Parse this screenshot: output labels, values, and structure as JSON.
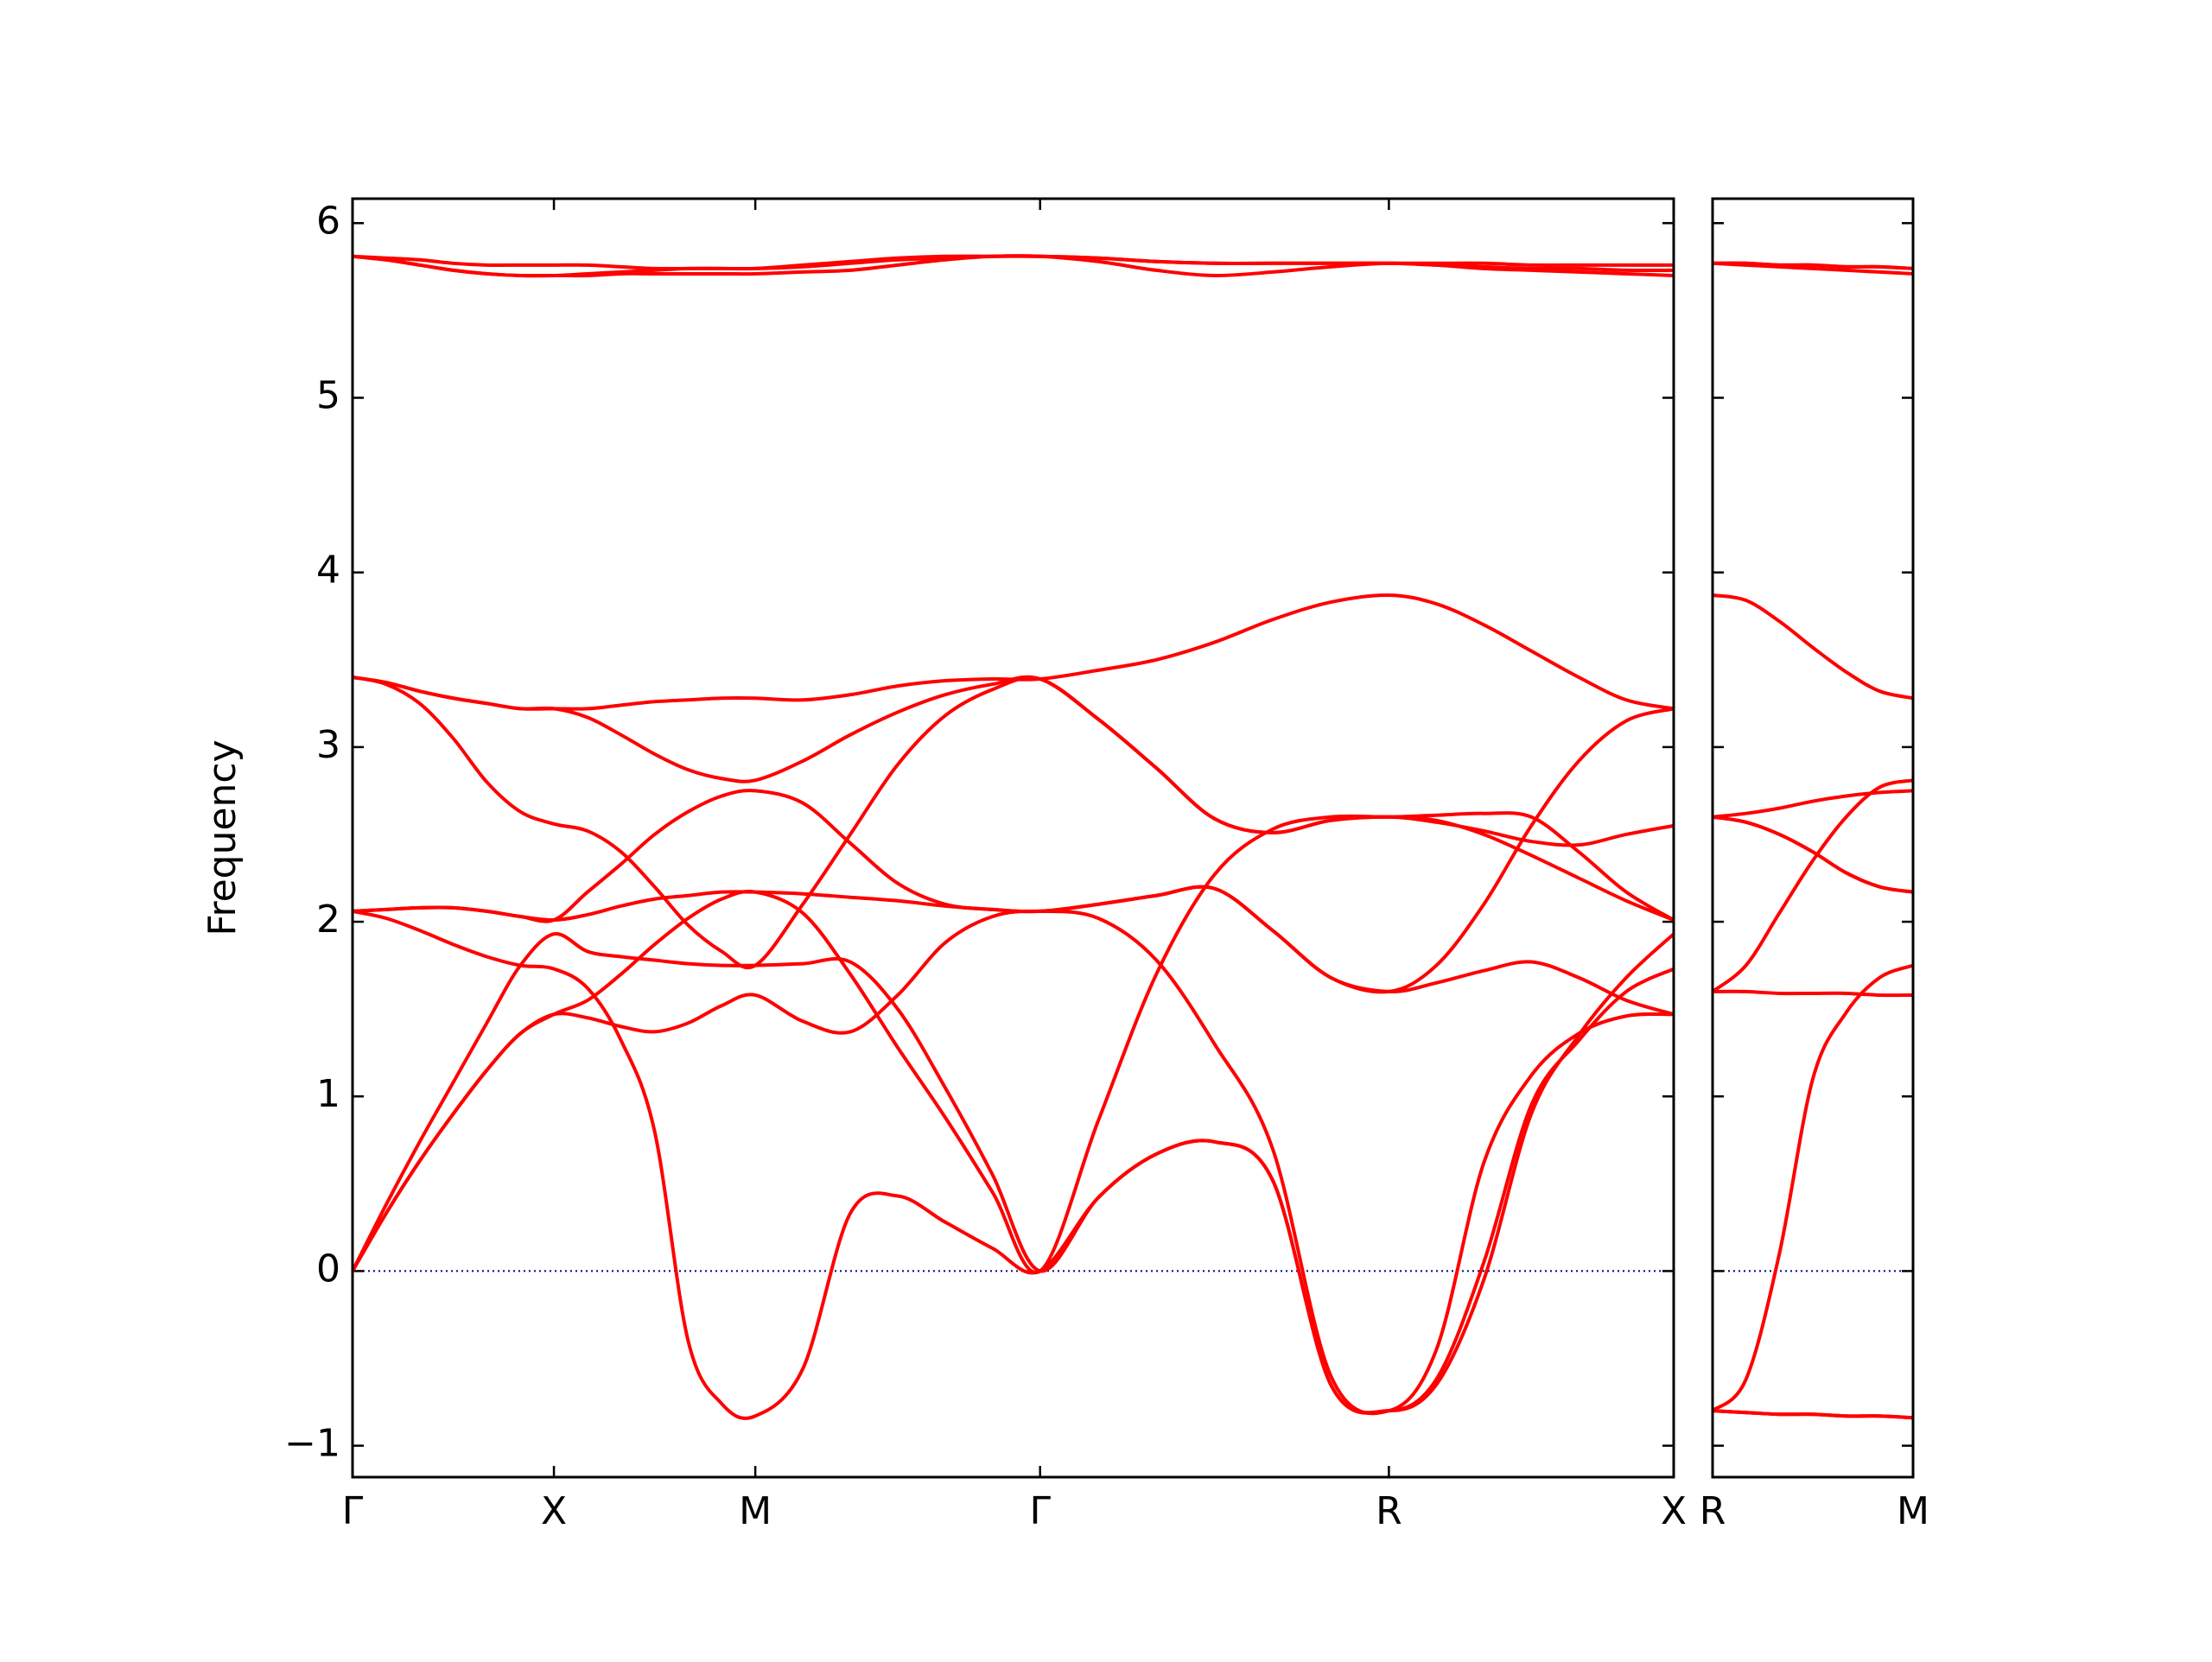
{
  "chart_data": [
    {
      "type": "line",
      "ylabel": "Frequency",
      "color": "#ff0000",
      "xlim": [
        0,
        3.2802
      ],
      "ylim": [
        -1.18,
        6.14
      ],
      "xticks": [
        {
          "value": 0,
          "label": "Γ"
        },
        {
          "value": 0.5,
          "label": "X"
        },
        {
          "value": 1.0,
          "label": "M"
        },
        {
          "value": 1.7071,
          "label": "Γ"
        },
        {
          "value": 2.5731,
          "label": "R"
        },
        {
          "value": 3.2802,
          "label": "X"
        }
      ],
      "yticks": [
        {
          "value": -1,
          "label": "−1"
        },
        0,
        1,
        2,
        3,
        4,
        5,
        6
      ],
      "ytick_labels": true,
      "hline": {
        "y": 0,
        "color": "#00008b"
      },
      "x": [
        0,
        0.0833,
        0.1667,
        0.25,
        0.3333,
        0.4167,
        0.5,
        0.5833,
        0.6667,
        0.75,
        0.8333,
        0.9167,
        1.0,
        1.1179,
        1.2357,
        1.3536,
        1.4714,
        1.5893,
        1.7071,
        1.8514,
        1.9958,
        2.1401,
        2.2845,
        2.4288,
        2.5731,
        2.691,
        2.8088,
        2.9267,
        3.0445,
        3.1624,
        3.2802
      ],
      "series": [
        {
          "values": [
            0,
            0.33,
            0.63,
            0.9,
            1.15,
            1.36,
            1.47,
            1.45,
            1.4,
            1.37,
            1.42,
            1.52,
            1.58,
            1.43,
            1.37,
            1.58,
            1.88,
            2.03,
            2.06,
            2.02,
            1.78,
            1.3,
            0.7,
            -0.6,
            -0.8,
            -0.45,
            0.62,
            1.12,
            1.36,
            1.46,
            1.47
          ]
        },
        {
          "values": [
            0,
            0.33,
            0.63,
            0.9,
            1.15,
            1.36,
            1.47,
            1.55,
            1.7,
            1.87,
            2.02,
            2.13,
            2.17,
            2.05,
            1.7,
            1.28,
            0.88,
            0.45,
            0,
            0.86,
            1.7,
            2.27,
            2.53,
            2.6,
            2.6,
            2.61,
            2.62,
            2.6,
            2.4,
            2.17,
            2.01
          ]
        },
        {
          "values": [
            0,
            0.38,
            0.74,
            1.08,
            1.42,
            1.75,
            1.93,
            1.83,
            1.8,
            1.78,
            1.76,
            1.75,
            1.75,
            1.76,
            1.77,
            1.5,
            1.05,
            0.55,
            0,
            0.42,
            0.67,
            0.74,
            0.52,
            -0.65,
            -0.8,
            -0.62,
            0.05,
            0.95,
            1.32,
            1.6,
            1.73
          ]
        },
        {
          "values": [
            2.06,
            2.02,
            1.95,
            1.87,
            1.8,
            1.75,
            1.73,
            1.62,
            1.32,
            0.8,
            -0.4,
            -0.76,
            -0.83,
            -0.56,
            0.33,
            0.43,
            0.28,
            0.13,
            0,
            0.42,
            0.67,
            0.74,
            0.52,
            -0.65,
            -0.8,
            -0.65,
            -0.05,
            0.9,
            1.35,
            1.68,
            1.93
          ]
        },
        {
          "values": [
            2.06,
            2.07,
            2.08,
            2.08,
            2.06,
            2.03,
            2.01,
            2.04,
            2.09,
            2.13,
            2.15,
            2.17,
            2.17,
            2.16,
            2.14,
            2.12,
            2.09,
            2.07,
            2.06,
            2.1,
            2.15,
            2.19,
            1.95,
            1.68,
            1.6,
            1.65,
            1.72,
            1.77,
            1.68,
            1.55,
            1.47
          ]
        },
        {
          "values": [
            2.06,
            2.07,
            2.08,
            2.08,
            2.06,
            2.03,
            2.01,
            2.17,
            2.33,
            2.5,
            2.63,
            2.72,
            2.75,
            2.68,
            2.45,
            2.22,
            2.1,
            2.07,
            2.06,
            2.1,
            2.15,
            2.19,
            1.95,
            1.68,
            1.6,
            1.75,
            2.1,
            2.55,
            2.92,
            3.15,
            3.22
          ]
        },
        {
          "values": [
            3.4,
            3.36,
            3.25,
            3.05,
            2.8,
            2.63,
            2.56,
            2.52,
            2.4,
            2.2,
            1.98,
            1.83,
            1.75,
            2.1,
            2.5,
            2.9,
            3.18,
            3.33,
            3.39,
            3.16,
            2.88,
            2.59,
            2.51,
            2.58,
            2.6,
            2.58,
            2.5,
            2.38,
            2.25,
            2.12,
            2.01
          ]
        },
        {
          "values": [
            3.4,
            3.37,
            3.32,
            3.28,
            3.25,
            3.22,
            3.22,
            3.22,
            3.24,
            3.26,
            3.27,
            3.28,
            3.28,
            3.27,
            3.3,
            3.35,
            3.38,
            3.39,
            3.39,
            3.44,
            3.5,
            3.6,
            3.73,
            3.83,
            3.87,
            3.82,
            3.7,
            3.55,
            3.4,
            3.27,
            3.22
          ]
        },
        {
          "values": [
            3.4,
            3.37,
            3.32,
            3.28,
            3.25,
            3.22,
            3.22,
            3.17,
            3.07,
            2.96,
            2.87,
            2.82,
            2.81,
            2.92,
            3.07,
            3.2,
            3.3,
            3.36,
            3.39,
            3.16,
            2.88,
            2.59,
            2.51,
            2.58,
            2.6,
            2.57,
            2.52,
            2.46,
            2.44,
            2.5,
            2.55
          ]
        },
        {
          "values": [
            5.81,
            5.8,
            5.79,
            5.77,
            5.76,
            5.76,
            5.76,
            5.76,
            5.75,
            5.74,
            5.74,
            5.74,
            5.74,
            5.75,
            5.77,
            5.79,
            5.8,
            5.81,
            5.81,
            5.8,
            5.78,
            5.77,
            5.77,
            5.77,
            5.77,
            5.77,
            5.77,
            5.76,
            5.76,
            5.76,
            5.76
          ]
        },
        {
          "values": [
            5.81,
            5.79,
            5.76,
            5.73,
            5.71,
            5.7,
            5.7,
            5.7,
            5.71,
            5.71,
            5.71,
            5.71,
            5.71,
            5.72,
            5.73,
            5.76,
            5.79,
            5.81,
            5.81,
            5.78,
            5.73,
            5.7,
            5.72,
            5.75,
            5.77,
            5.76,
            5.74,
            5.73,
            5.72,
            5.71,
            5.7
          ]
        },
        {
          "values": [
            5.81,
            5.79,
            5.76,
            5.73,
            5.71,
            5.7,
            5.7,
            5.71,
            5.72,
            5.73,
            5.74,
            5.74,
            5.74,
            5.76,
            5.78,
            5.8,
            5.81,
            5.81,
            5.81,
            5.8,
            5.78,
            5.77,
            5.77,
            5.77,
            5.77,
            5.76,
            5.75,
            5.74,
            5.74,
            5.73,
            5.73
          ]
        }
      ]
    },
    {
      "type": "line",
      "color": "#ff0000",
      "xlim": [
        0,
        0.5
      ],
      "ylim": [
        -1.18,
        6.14
      ],
      "xticks": [
        {
          "value": 0,
          "label": "R"
        },
        {
          "value": 0.5,
          "label": "M"
        }
      ],
      "yticks": [
        {
          "value": -1,
          "label": "−1"
        },
        0,
        1,
        2,
        3,
        4,
        5,
        6
      ],
      "ytick_labels": false,
      "hline": {
        "y": 0,
        "color": "#00008b"
      },
      "x": [
        0,
        0.0833,
        0.1667,
        0.25,
        0.3333,
        0.4167,
        0.5
      ],
      "series": [
        {
          "values": [
            -0.8,
            -0.81,
            -0.82,
            -0.82,
            -0.83,
            -0.83,
            -0.84
          ]
        },
        {
          "values": [
            -0.8,
            -0.81,
            -0.82,
            -0.82,
            -0.83,
            -0.83,
            -0.84
          ]
        },
        {
          "values": [
            -0.8,
            -0.62,
            0.1,
            1.1,
            1.48,
            1.68,
            1.75
          ]
        },
        {
          "values": [
            1.6,
            1.6,
            1.59,
            1.59,
            1.59,
            1.58,
            1.58
          ]
        },
        {
          "values": [
            1.6,
            1.75,
            2.05,
            2.35,
            2.6,
            2.77,
            2.81
          ]
        },
        {
          "values": [
            2.6,
            2.62,
            2.65,
            2.69,
            2.72,
            2.74,
            2.75
          ]
        },
        {
          "values": [
            2.6,
            2.57,
            2.5,
            2.4,
            2.28,
            2.2,
            2.17
          ]
        },
        {
          "values": [
            2.6,
            2.57,
            2.5,
            2.4,
            2.28,
            2.2,
            2.17
          ]
        },
        {
          "values": [
            3.87,
            3.84,
            3.72,
            3.57,
            3.43,
            3.32,
            3.28
          ]
        },
        {
          "values": [
            5.77,
            5.77,
            5.76,
            5.76,
            5.75,
            5.75,
            5.74
          ]
        },
        {
          "values": [
            5.77,
            5.76,
            5.75,
            5.74,
            5.73,
            5.72,
            5.71
          ]
        },
        {
          "values": [
            5.77,
            5.77,
            5.76,
            5.76,
            5.75,
            5.75,
            5.74
          ]
        }
      ]
    }
  ]
}
